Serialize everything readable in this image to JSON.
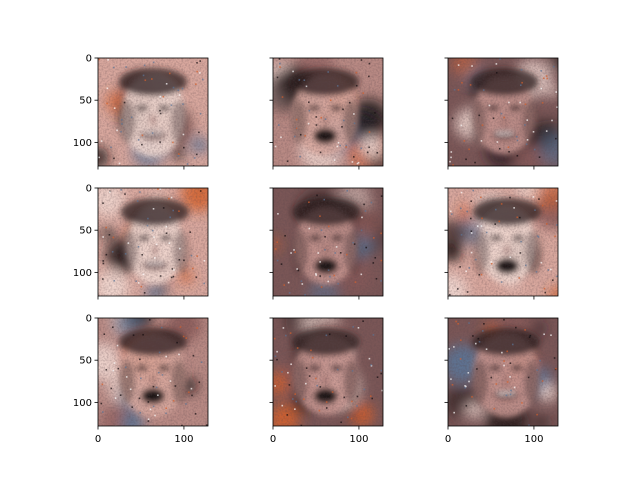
{
  "chart_data": {
    "type": "image-grid",
    "grid": {
      "rows": 3,
      "cols": 3
    },
    "image_size": [
      128,
      128
    ],
    "x_ticks": [
      0,
      100
    ],
    "y_ticks": [
      0,
      50,
      100
    ],
    "tick_labels_x": [
      "0",
      "100"
    ],
    "tick_labels_y": [
      "0",
      "50",
      "100"
    ],
    "shared_axes": {
      "x_labels_on": "bottom-row",
      "y_labels_on": "left-column"
    },
    "panels": [
      {
        "row": 0,
        "col": 0,
        "content": "generated-face-image",
        "mouth": "smile",
        "tone": "light"
      },
      {
        "row": 0,
        "col": 1,
        "content": "generated-face-image",
        "mouth": "open",
        "tone": "mid"
      },
      {
        "row": 0,
        "col": 2,
        "content": "generated-face-image",
        "mouth": "smile",
        "tone": "dark"
      },
      {
        "row": 1,
        "col": 0,
        "content": "generated-face-image",
        "mouth": "smile",
        "tone": "light"
      },
      {
        "row": 1,
        "col": 1,
        "content": "generated-face-image",
        "mouth": "open",
        "tone": "dark"
      },
      {
        "row": 1,
        "col": 2,
        "content": "generated-face-image",
        "mouth": "open",
        "tone": "light"
      },
      {
        "row": 2,
        "col": 0,
        "content": "generated-face-image",
        "mouth": "open",
        "tone": "mid"
      },
      {
        "row": 2,
        "col": 1,
        "content": "generated-face-image",
        "mouth": "open",
        "tone": "dark"
      },
      {
        "row": 2,
        "col": 2,
        "content": "generated-face-image",
        "mouth": "smile",
        "tone": "dark"
      }
    ],
    "colors": {
      "skin": "#d9a89e",
      "skin_light": "#f2d9d2",
      "shadow": "#2a1c1e",
      "accent_orange": "#d4602c",
      "accent_blue": "#5b7394",
      "dark": "#140d0f",
      "axis": "#000000"
    }
  }
}
